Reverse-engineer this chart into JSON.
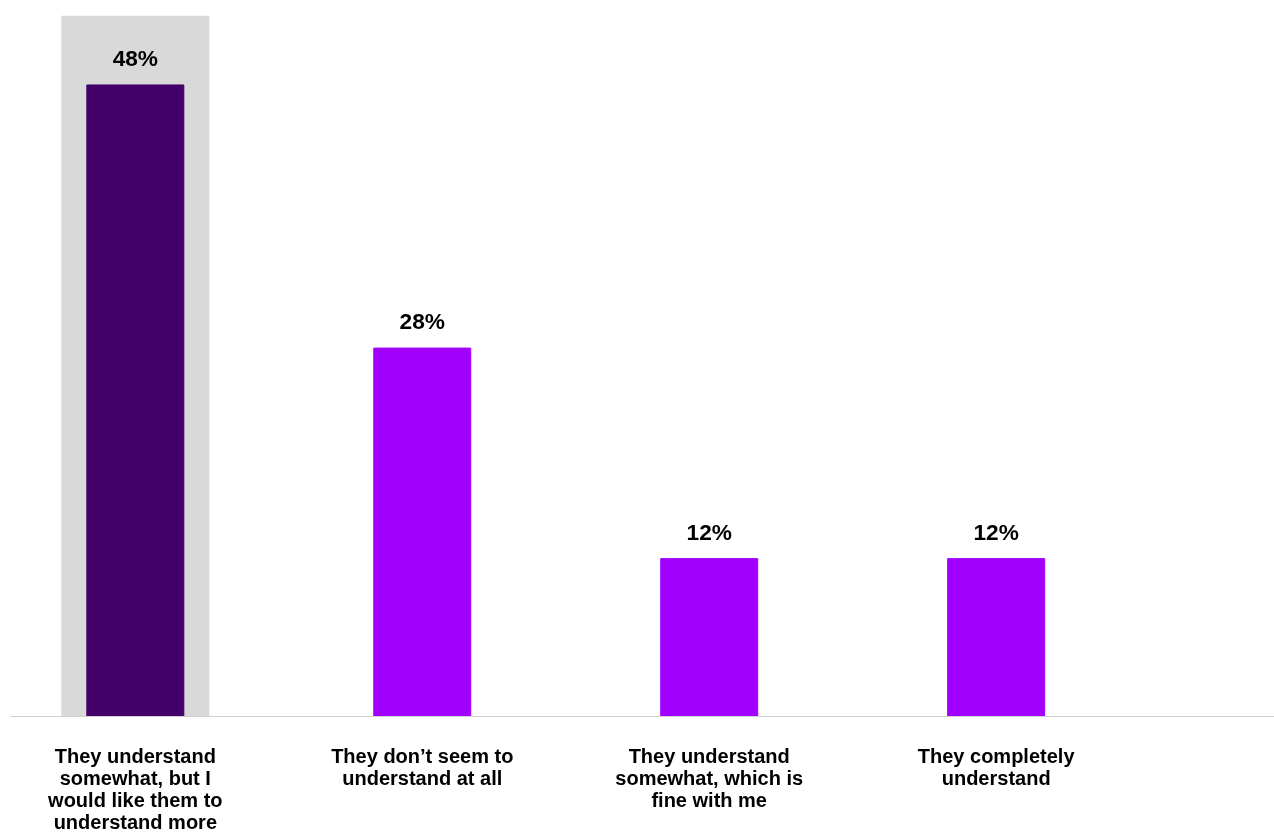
{
  "chart_data": {
    "type": "bar",
    "categories": [
      "They understand somewhat, but I would like them to understand more",
      "They don’t seem to understand at all",
      "They understand somewhat, which is fine with me",
      "They completely understand"
    ],
    "values": [
      48,
      28,
      12,
      12
    ],
    "colors": [
      "#430068",
      "#a100ff",
      "#a100ff",
      "#a100ff"
    ],
    "value_labels": [
      "48%",
      "28%",
      "12%",
      "12%"
    ],
    "bands": [
      {
        "axis": "x",
        "from": "They understand somewhat, but I would like them to understand more",
        "to": "They understand somewhat, but I would like them to understand more",
        "color": "#d9d9d9"
      }
    ],
    "grid": false
  }
}
